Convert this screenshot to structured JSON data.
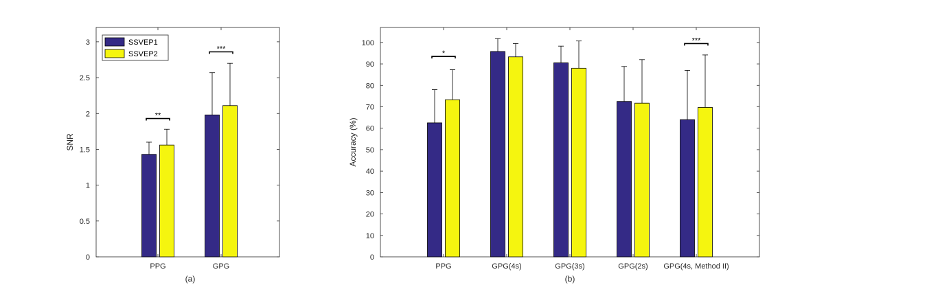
{
  "colors": {
    "s1": "#342a86",
    "s2": "#f5f50f",
    "axis": "#262626"
  },
  "chart_data": [
    {
      "type": "bar",
      "panel_label": "(a)",
      "ylabel": "SNR",
      "xlabel": "",
      "ylim": [
        0,
        3.2
      ],
      "yticks": [
        0,
        0.5,
        1,
        1.5,
        2,
        2.5,
        3
      ],
      "ytick_labels": [
        "0",
        "0.5",
        "1",
        "1.5",
        "2",
        "2.5",
        "3"
      ],
      "categories": [
        "PPG",
        "GPG"
      ],
      "series": [
        {
          "name": "SSVEP1",
          "values": [
            1.43,
            1.98
          ],
          "errors": [
            0.17,
            0.59
          ]
        },
        {
          "name": "SSVEP2",
          "values": [
            1.56,
            2.11
          ],
          "errors": [
            0.22,
            0.59
          ]
        }
      ],
      "significance": [
        {
          "category_index": 0,
          "label": "**",
          "y": 1.93
        },
        {
          "category_index": 1,
          "label": "***",
          "y": 2.86
        }
      ],
      "legend": {
        "placement": "top-left",
        "entries": [
          "SSVEP1",
          "SSVEP2"
        ]
      },
      "grid": false
    },
    {
      "type": "bar",
      "panel_label": "(b)",
      "ylabel": "Accuracy (%)",
      "xlabel": "",
      "ylim": [
        0,
        107
      ],
      "yticks": [
        0,
        10,
        20,
        30,
        40,
        50,
        60,
        70,
        80,
        90,
        100
      ],
      "ytick_labels": [
        "0",
        "10",
        "20",
        "30",
        "40",
        "50",
        "60",
        "70",
        "80",
        "90",
        "100"
      ],
      "categories": [
        "PPG",
        "GPG(4s)",
        "GPG(3s)",
        "GPG(2s)",
        "GPG(4s, Method II)"
      ],
      "series": [
        {
          "name": "SSVEP1",
          "values": [
            62.5,
            95.8,
            90.5,
            72.5,
            64
          ],
          "errors": [
            15.5,
            6,
            7.8,
            16.3,
            23
          ]
        },
        {
          "name": "SSVEP2",
          "values": [
            73.3,
            93.3,
            88,
            71.7,
            69.7
          ],
          "errors": [
            14,
            6.2,
            12.7,
            20.3,
            24.5
          ]
        }
      ],
      "significance": [
        {
          "category_index": 0,
          "label": "*",
          "y": 93.5
        },
        {
          "category_index": 4,
          "label": "***",
          "y": 99.5
        }
      ],
      "grid": false
    }
  ]
}
